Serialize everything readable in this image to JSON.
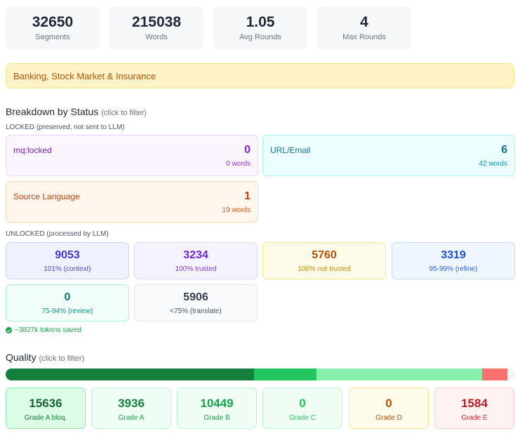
{
  "stats": [
    {
      "value": "32650",
      "label": "Segments"
    },
    {
      "value": "215038",
      "label": "Words"
    },
    {
      "value": "1.05",
      "label": "Avg Rounds"
    },
    {
      "value": "4",
      "label": "Max Rounds"
    }
  ],
  "domain": "Banking, Stock Market & Insurance",
  "breakdown": {
    "title": "Breakdown by Status",
    "hint": "(click to filter)",
    "locked_label": "LOCKED (preserved, not sent to LLM)",
    "locked": [
      {
        "name": "mq:locked",
        "count": "0",
        "words": "0 words"
      },
      {
        "name": "URL/Email",
        "count": "6",
        "words": "42 words"
      },
      {
        "name": "Source Language",
        "count": "1",
        "words": "19 words"
      }
    ],
    "unlocked_label": "UNLOCKED (processed by LLM)",
    "unlocked": [
      {
        "value": "9053",
        "label": "101% (context)"
      },
      {
        "value": "3234",
        "label": "100% trusted"
      },
      {
        "value": "5760",
        "label": "100% not trusted"
      },
      {
        "value": "3319",
        "label": "95-99% (refine)"
      },
      {
        "value": "0",
        "label": "75-94% (review)"
      },
      {
        "value": "5906",
        "label": "<75% (translate)"
      }
    ],
    "saved": "~3827k tokens saved"
  },
  "quality": {
    "title": "Quality",
    "hint": "(click to filter)",
    "bar_colors": [
      "#15803d",
      "#22c55e",
      "#86efac",
      "#fca5a5",
      "#f87171"
    ],
    "grades": [
      {
        "value": "15636",
        "label": "Grade A bloq."
      },
      {
        "value": "3936",
        "label": "Grade A"
      },
      {
        "value": "10449",
        "label": "Grade B"
      },
      {
        "value": "0",
        "label": "Grade C"
      },
      {
        "value": "0",
        "label": "Grade D"
      },
      {
        "value": "1584",
        "label": "Grade E"
      }
    ]
  }
}
